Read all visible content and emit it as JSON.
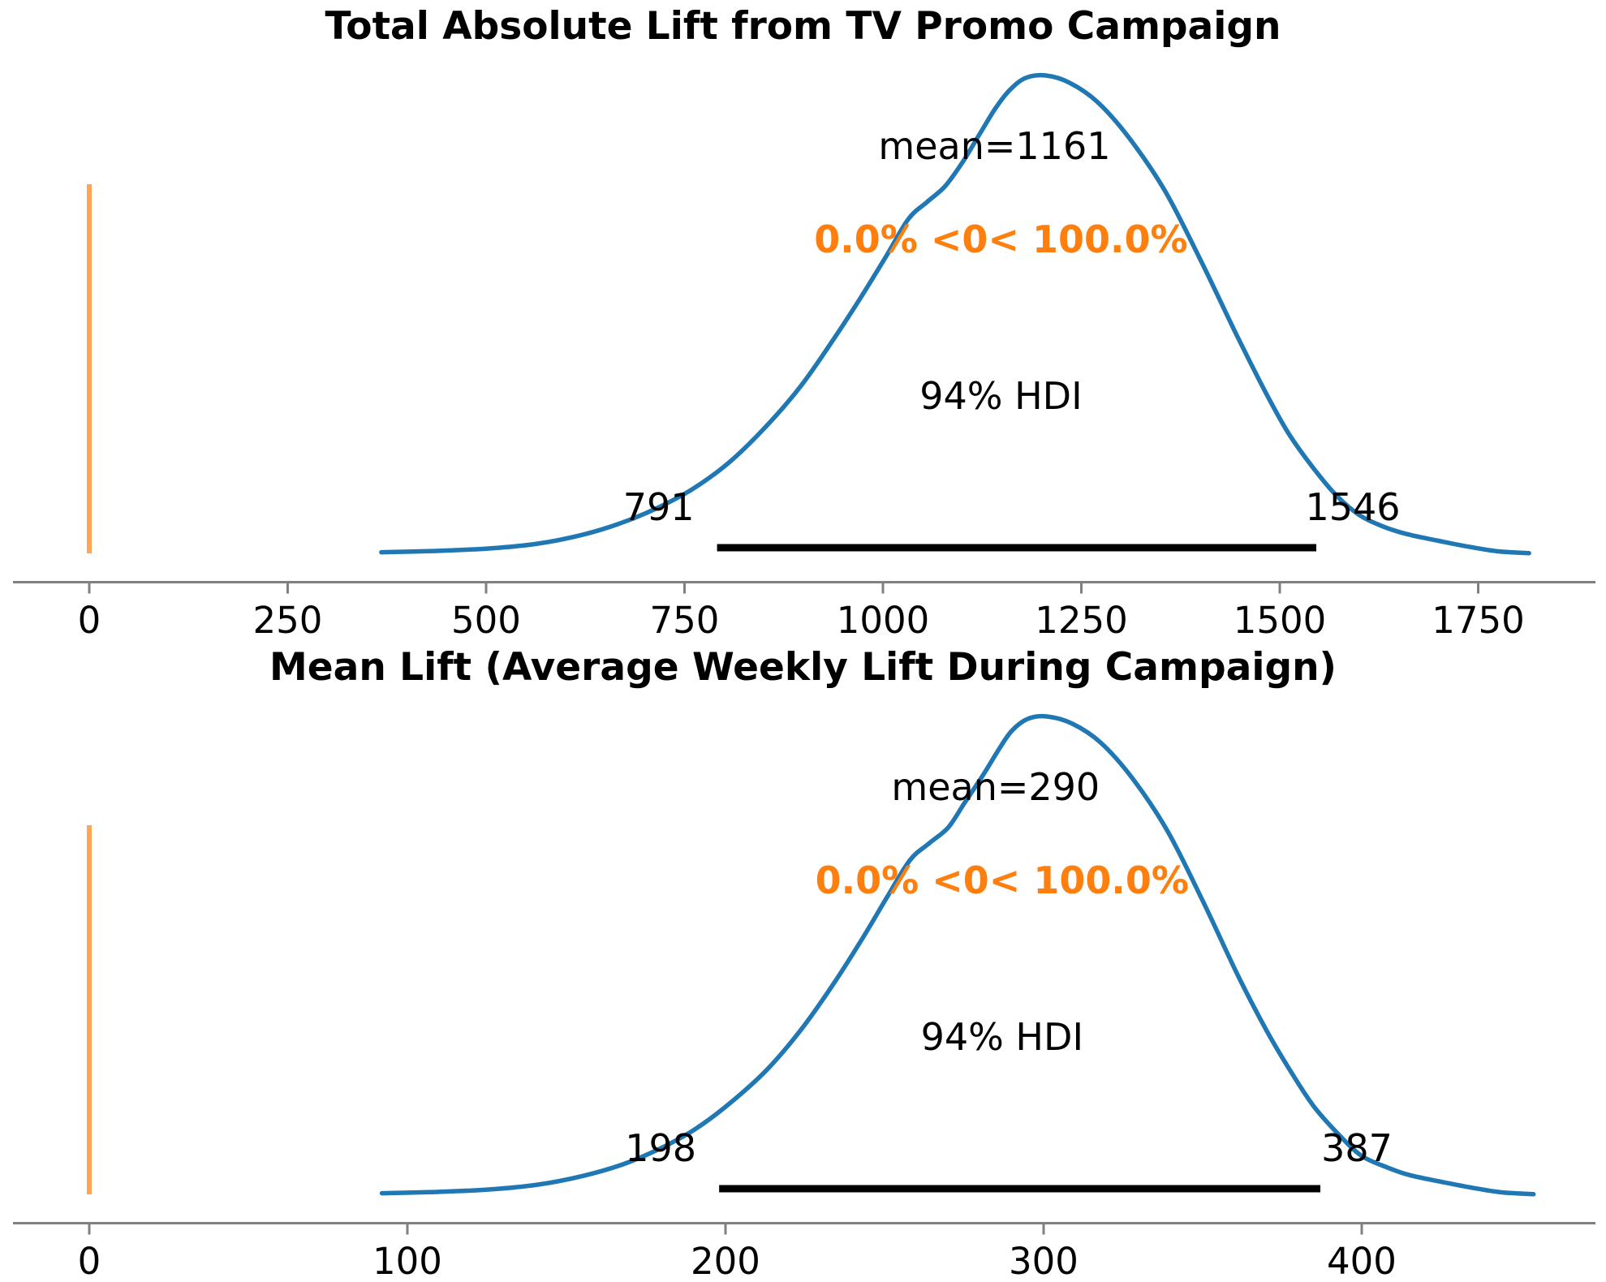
{
  "colors": {
    "curve_blue": "#1f77b4",
    "ref_orange": "#ff7f0e",
    "hdi_black": "#000000",
    "axis_gray": "#808080",
    "text": "#000000",
    "background": "#ffffff"
  },
  "chart_data": [
    {
      "type": "line",
      "subtype": "kde_posterior_density",
      "title": "Total Absolute Lift from TV Promo Campaign",
      "mean": 1161,
      "mean_label": "mean=1161",
      "ref_val": 0,
      "ref_val_label": "0.0% <0< 100.0%",
      "hdi_prob": "94%",
      "hdi_label": "94% HDI",
      "hdi_lower": 791,
      "hdi_upper": 1546,
      "hdi_lower_label": "791",
      "hdi_upper_label": "1546",
      "x_ticks": [
        0,
        250,
        500,
        750,
        1000,
        1250,
        1500,
        1750
      ],
      "x_range": [
        368,
        1814
      ],
      "legend": "none",
      "grid": "off",
      "kde": {
        "x": [
          368,
          440,
          505,
          565,
          620,
          670,
          715,
          760,
          805,
          850,
          895,
          935,
          972,
          1005,
          1032,
          1055,
          1078,
          1100,
          1122,
          1142,
          1160,
          1180,
          1205,
          1235,
          1270,
          1310,
          1355,
          1400,
          1445,
          1480,
          1510,
          1540,
          1570,
          1600,
          1630,
          1660,
          1700,
          1740,
          1775,
          1814
        ],
        "density": [
          0.004,
          0.007,
          0.012,
          0.022,
          0.04,
          0.065,
          0.096,
          0.136,
          0.19,
          0.262,
          0.348,
          0.442,
          0.536,
          0.625,
          0.7,
          0.735,
          0.768,
          0.818,
          0.878,
          0.932,
          0.97,
          0.995,
          1.0,
          0.985,
          0.945,
          0.87,
          0.76,
          0.615,
          0.46,
          0.345,
          0.255,
          0.185,
          0.125,
          0.082,
          0.058,
          0.042,
          0.028,
          0.015,
          0.006,
          0.002
        ]
      }
    },
    {
      "type": "line",
      "subtype": "kde_posterior_density",
      "title": "Mean Lift (Average Weekly Lift During Campaign)",
      "mean": 290,
      "mean_label": "mean=290",
      "ref_val": 0,
      "ref_val_label": "0.0% <0< 100.0%",
      "hdi_prob": "94%",
      "hdi_label": "94% HDI",
      "hdi_lower": 198,
      "hdi_upper": 387,
      "hdi_lower_label": "198",
      "hdi_upper_label": "387",
      "x_ticks": [
        0,
        100,
        200,
        300,
        400
      ],
      "x_range": [
        92,
        454
      ],
      "legend": "none",
      "grid": "off",
      "kde": {
        "x": [
          92,
          110,
          126,
          141,
          155,
          168,
          179,
          190,
          201,
          213,
          224,
          234,
          243,
          251,
          258,
          264,
          270,
          275,
          281,
          286,
          290,
          295,
          301,
          309,
          318,
          328,
          339,
          350,
          361,
          370,
          378,
          385,
          393,
          400,
          408,
          415,
          425,
          435,
          444,
          454
        ],
        "density": [
          0.004,
          0.007,
          0.012,
          0.022,
          0.04,
          0.065,
          0.096,
          0.136,
          0.19,
          0.262,
          0.348,
          0.442,
          0.536,
          0.625,
          0.7,
          0.735,
          0.768,
          0.818,
          0.878,
          0.932,
          0.97,
          0.995,
          1.0,
          0.985,
          0.945,
          0.87,
          0.76,
          0.615,
          0.46,
          0.345,
          0.255,
          0.185,
          0.125,
          0.082,
          0.058,
          0.042,
          0.028,
          0.015,
          0.006,
          0.002
        ]
      }
    }
  ]
}
